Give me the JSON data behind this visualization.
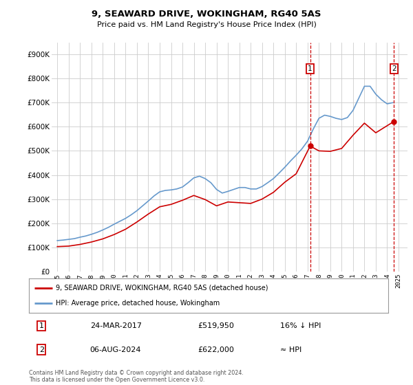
{
  "title": "9, SEAWARD DRIVE, WOKINGHAM, RG40 5AS",
  "subtitle": "Price paid vs. HM Land Registry's House Price Index (HPI)",
  "legend_label_red": "9, SEAWARD DRIVE, WOKINGHAM, RG40 5AS (detached house)",
  "legend_label_blue": "HPI: Average price, detached house, Wokingham",
  "annotation1_label": "1",
  "annotation1_date": "24-MAR-2017",
  "annotation1_price": "£519,950",
  "annotation1_hpi": "16% ↓ HPI",
  "annotation2_label": "2",
  "annotation2_date": "06-AUG-2024",
  "annotation2_price": "£622,000",
  "annotation2_hpi": "≈ HPI",
  "footer": "Contains HM Land Registry data © Crown copyright and database right 2024.\nThis data is licensed under the Open Government Licence v3.0.",
  "red_color": "#cc0000",
  "blue_color": "#6699cc",
  "background_color": "#ffffff",
  "grid_color": "#cccccc",
  "ylim": [
    0,
    950000
  ],
  "yticks": [
    0,
    100000,
    200000,
    300000,
    400000,
    500000,
    600000,
    700000,
    800000,
    900000
  ],
  "ytick_labels": [
    "£0",
    "£100K",
    "£200K",
    "£300K",
    "£400K",
    "£500K",
    "£600K",
    "£700K",
    "£800K",
    "£900K"
  ],
  "years_hpi": [
    1995,
    1995.5,
    1996,
    1996.5,
    1997,
    1997.5,
    1998,
    1998.5,
    1999,
    1999.5,
    2000,
    2000.5,
    2001,
    2001.5,
    2002,
    2002.5,
    2003,
    2003.5,
    2004,
    2004.5,
    2005,
    2005.5,
    2006,
    2006.5,
    2007,
    2007.5,
    2008,
    2008.5,
    2009,
    2009.5,
    2010,
    2010.5,
    2011,
    2011.5,
    2012,
    2012.5,
    2013,
    2013.5,
    2014,
    2014.5,
    2015,
    2015.5,
    2016,
    2016.5,
    2017,
    2017.5,
    2018,
    2018.5,
    2019,
    2019.5,
    2020,
    2020.5,
    2021,
    2021.5,
    2022,
    2022.5,
    2023,
    2023.5,
    2024,
    2024.5
  ],
  "hpi_values": [
    128000,
    130000,
    133000,
    136000,
    142000,
    147000,
    154000,
    162000,
    172000,
    183000,
    196000,
    208000,
    220000,
    235000,
    252000,
    272000,
    292000,
    313000,
    330000,
    336000,
    338000,
    342000,
    350000,
    368000,
    388000,
    395000,
    385000,
    368000,
    340000,
    325000,
    332000,
    340000,
    348000,
    348000,
    342000,
    342000,
    352000,
    368000,
    385000,
    408000,
    432000,
    458000,
    482000,
    508000,
    540000,
    590000,
    635000,
    648000,
    643000,
    635000,
    630000,
    638000,
    668000,
    718000,
    768000,
    768000,
    735000,
    712000,
    695000,
    700000
  ],
  "red_years": [
    1995,
    1996,
    1997,
    1998,
    1999,
    2000,
    2001,
    2002,
    2003,
    2004,
    2005,
    2006,
    2007,
    2008,
    2009,
    2010,
    2011,
    2012,
    2013,
    2014,
    2015,
    2016,
    2017.23,
    2018,
    2019,
    2020,
    2021,
    2022,
    2023,
    2024.6
  ],
  "red_values": [
    103000,
    105000,
    112000,
    122000,
    135000,
    153000,
    175000,
    205000,
    238000,
    268000,
    278000,
    295000,
    315000,
    298000,
    272000,
    288000,
    285000,
    282000,
    300000,
    328000,
    370000,
    405000,
    519950,
    500000,
    498000,
    510000,
    565000,
    615000,
    575000,
    622000
  ],
  "point1_x": 2017.23,
  "point1_y": 519950,
  "point2_x": 2024.6,
  "point2_y": 622000,
  "vline1_x": 2017.23,
  "vline2_x": 2024.6,
  "xlim": [
    1994.5,
    2025.8
  ],
  "xticks": [
    1995,
    1996,
    1997,
    1998,
    1999,
    2000,
    2001,
    2002,
    2003,
    2004,
    2005,
    2006,
    2007,
    2008,
    2009,
    2010,
    2011,
    2012,
    2013,
    2014,
    2015,
    2016,
    2017,
    2018,
    2019,
    2020,
    2021,
    2022,
    2023,
    2024,
    2025
  ]
}
